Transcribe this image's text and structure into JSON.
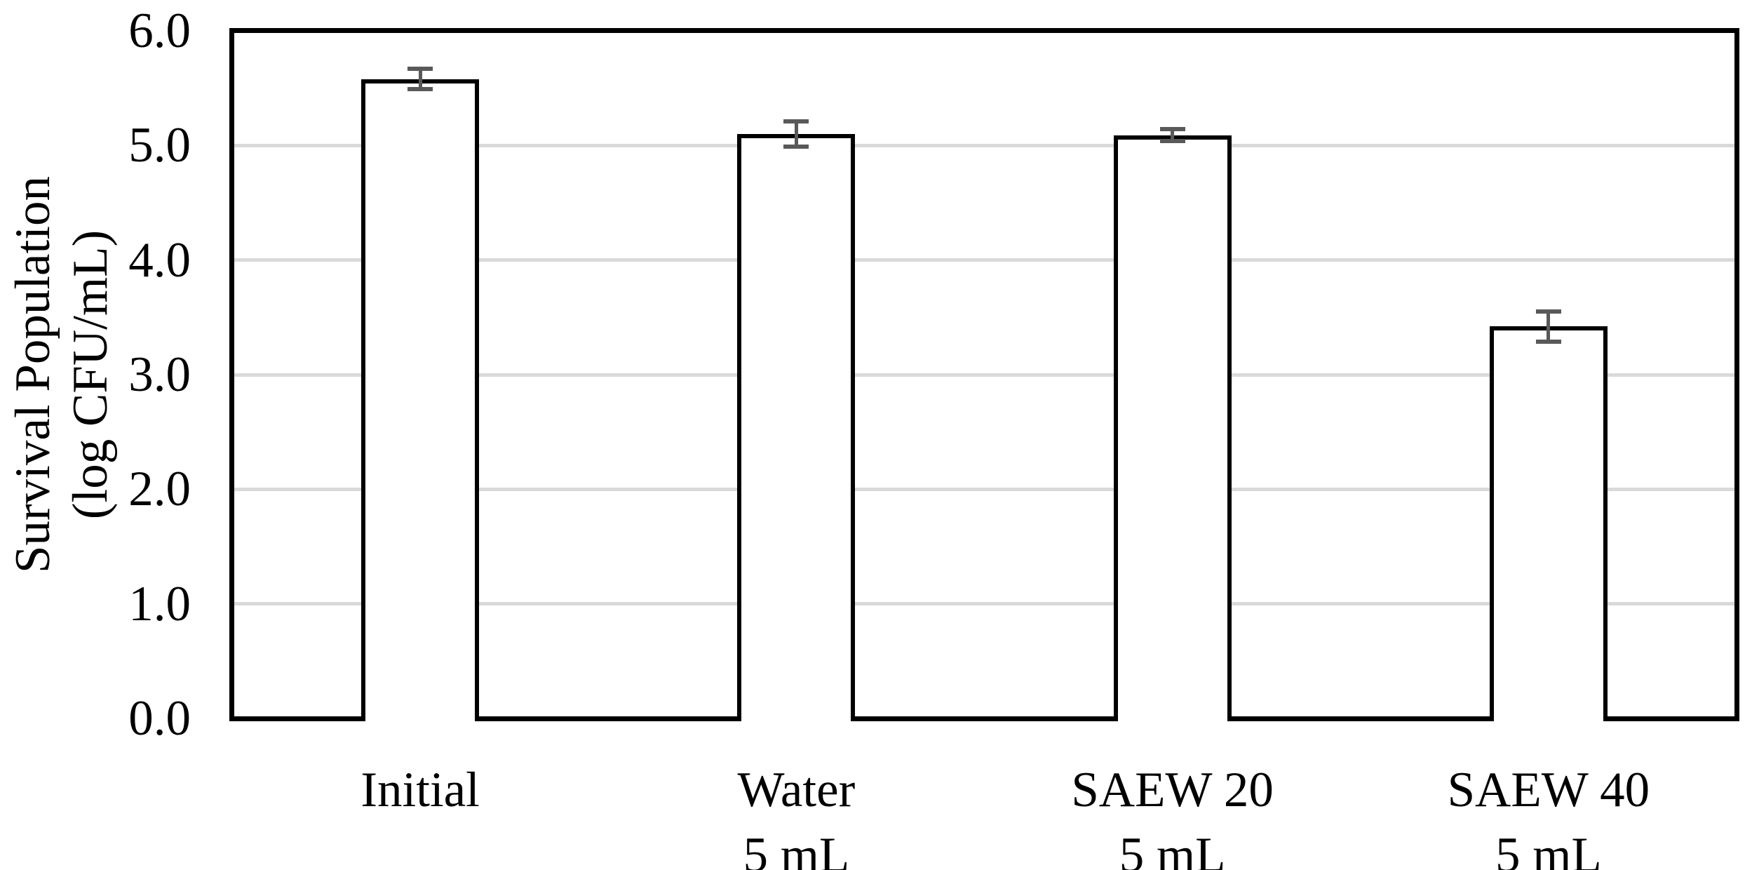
{
  "chart_data": {
    "type": "bar",
    "title": "",
    "xlabel": "",
    "ylabel": "Survival Population (log CFU/mL)",
    "ylabel_lines": [
      "Survival Population",
      "(log CFU/mL)"
    ],
    "ylim": [
      0.0,
      6.0
    ],
    "ytick_step": 1.0,
    "yticks": [
      "6.0",
      "5.0",
      "4.0",
      "3.0",
      "2.0",
      "1.0",
      "0.0"
    ],
    "grid": "horizontal gridlines at 1.0 through 5.0",
    "legend": "none",
    "categories": [
      {
        "line1": "Initial",
        "line2": ""
      },
      {
        "line1": "Water",
        "line2": "5 mL"
      },
      {
        "line1": "SAEW 20",
        "line2": "5 mL"
      },
      {
        "line1": "SAEW 40",
        "line2": "5 mL"
      }
    ],
    "series": [
      {
        "name": "Survival Population (log CFU/mL)",
        "values": [
          5.58,
          5.1,
          5.09,
          3.42
        ],
        "errors": [
          0.09,
          0.11,
          0.05,
          0.13
        ]
      }
    ],
    "colors": {
      "background": "#ffffff",
      "bar_fill": "#ffffff",
      "bar_border": "#000000",
      "error_bar": "#595959",
      "gridline": "#d9d9d9",
      "axis": "#000000",
      "text": "#000000"
    }
  }
}
